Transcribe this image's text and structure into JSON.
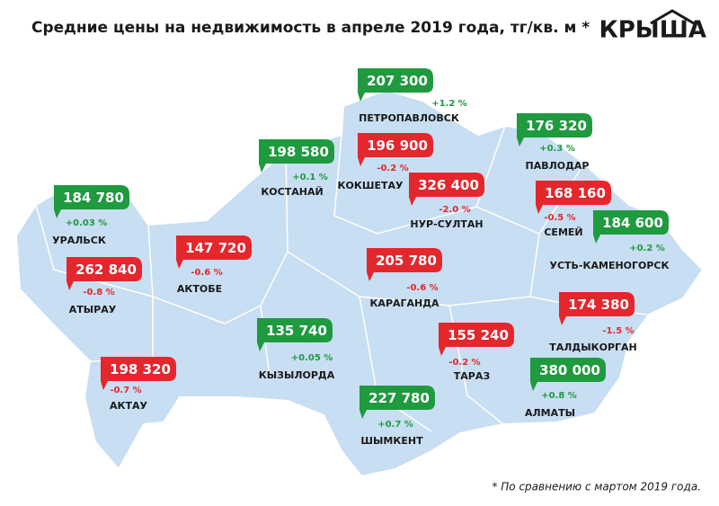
{
  "header": {
    "title": "Средние цены на недвижимость в апреле 2019 года, тг/кв. м *",
    "logo": "КРЫША"
  },
  "cities": [
    {
      "name": "ПЕТРОПАВЛОВСК",
      "price": "207 300",
      "change": "+1.2 %"
    },
    {
      "name": "ПАВЛОДАР",
      "price": "176 320",
      "change": "+0.3 %"
    },
    {
      "name": "КОСТАНАЙ",
      "price": "198 580",
      "change": "+0.1 %"
    },
    {
      "name": "КОКШЕТАУ",
      "price": "196 900",
      "change": "-0.2 %"
    },
    {
      "name": "НУР-СУЛТАН",
      "price": "326 400",
      "change": "-2.0 %"
    },
    {
      "name": "СЕМЕЙ",
      "price": "168 160",
      "change": "-0.5 %"
    },
    {
      "name": "УРАЛЬСК",
      "price": "184 780",
      "change": "+0.03 %"
    },
    {
      "name": "УСТЬ-КАМЕНОГОРСК",
      "price": "184 600",
      "change": "+0.2 %"
    },
    {
      "name": "АТЫРАУ",
      "price": "262 840",
      "change": "-0.8 %"
    },
    {
      "name": "АКТОБЕ",
      "price": "147 720",
      "change": "-0.6 %"
    },
    {
      "name": "КАРАГАНДА",
      "price": "205 780",
      "change": "-0.6 %"
    },
    {
      "name": "ТАЛДЫКОРГАН",
      "price": "174 380",
      "change": "-1.5 %"
    },
    {
      "name": "КЫЗЫЛОРДА",
      "price": "135 740",
      "change": "+0.05 %"
    },
    {
      "name": "ТАРАЗ",
      "price": "155 240",
      "change": "-0.2 %"
    },
    {
      "name": "АКТАУ",
      "price": "198 320",
      "change": "-0.7 %"
    },
    {
      "name": "АЛМАТЫ",
      "price": "380 000",
      "change": "+0.8 %"
    },
    {
      "name": "ШЫМКЕНТ",
      "price": "227 780",
      "change": "+0.7 %"
    }
  ],
  "footnote": "* По сравнению с мартом 2019 года."
}
